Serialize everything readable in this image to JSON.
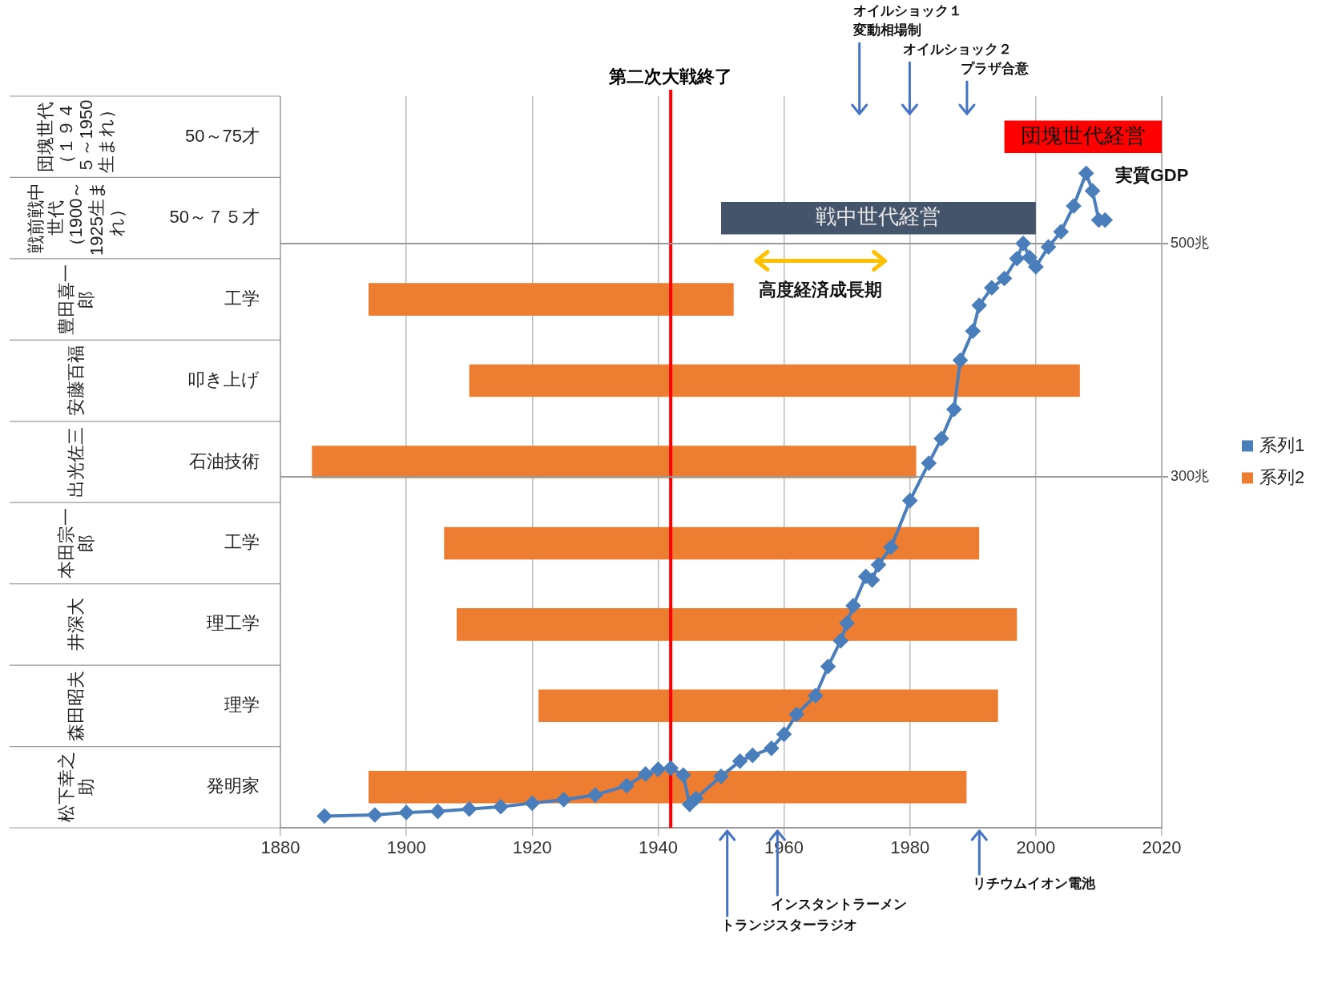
{
  "chart_data": [
    {
      "type": "bar",
      "orientation": "horizontal",
      "categories": [
        "50～75才",
        "50～７５才",
        "工学",
        "叩き上げ",
        "石油技術",
        "工学",
        "理工学",
        "理学",
        "発明家"
      ],
      "y2_categories": [
        "団塊世代（１９４５～1950生まれ）",
        "戦前戦中世代（1900～1925生まれ）",
        "豊田喜一郎",
        "安藤百福",
        "出光佐三",
        "本田宗一郎",
        "井深大",
        "森田昭夫",
        "松下幸之助"
      ],
      "xlim": [
        1880,
        2020
      ],
      "xticks": [
        1880,
        1900,
        1920,
        1940,
        1960,
        1980,
        2000,
        2020
      ],
      "grid": "x",
      "legend": "right",
      "series": [
        {
          "name": "系列2",
          "color": "#ed7d31",
          "colors": [
            "#ff0000",
            "#44546a",
            "#ed7d31",
            "#ed7d31",
            "#ed7d31",
            "#ed7d31",
            "#ed7d31",
            "#ed7d31",
            "#ed7d31"
          ],
          "base": [
            1995,
            1950,
            1894,
            1910,
            1885,
            1906,
            1908,
            1921,
            1894
          ],
          "values": [
            25,
            50,
            58,
            97,
            96,
            85,
            89,
            73,
            95
          ],
          "value_labels": [
            "団塊世代経営",
            "戦中世代経営",
            null,
            null,
            null,
            null,
            null,
            null,
            null
          ]
        }
      ],
      "ref_lines": [
        {
          "axis": "x",
          "value": 1942,
          "label": "第二次大戦終了",
          "color": "#ff0000"
        }
      ],
      "annotations": [
        "オイルショック１",
        "変動相場制",
        "オイルショック２",
        "プラザ合意",
        "高度経済成長期"
      ]
    },
    {
      "type": "line",
      "xlim": [
        1880,
        2020
      ],
      "y2lim": [
        0,
        626
      ],
      "y2ticks": [
        {
          "value": 300,
          "label": "300兆"
        },
        {
          "value": 500,
          "label": "500兆"
        }
      ],
      "tick_labels": "y",
      "grid": "y",
      "legend": "right",
      "marker": "diamond",
      "x": [
        1887,
        1895,
        1900,
        1905,
        1910,
        1915,
        1920,
        1925,
        1930,
        1935,
        1938,
        1940,
        1942,
        1944,
        1945,
        1946,
        1950,
        1953,
        1955,
        1958,
        1960,
        1962,
        1965,
        1967,
        1969,
        1970,
        1971,
        1973,
        1974,
        1975,
        1977,
        1980,
        1983,
        1985,
        1987,
        1988,
        1990,
        1991,
        1993,
        1995,
        1997,
        1998,
        1999,
        2000,
        2002,
        2004,
        2006,
        2008,
        2009,
        2010,
        2011
      ],
      "series": [
        {
          "name": "系列1",
          "color": "#4a7ebb",
          "axis": "y2",
          "values": [
            10,
            11,
            13,
            14,
            16,
            18,
            21,
            24,
            28,
            36,
            46,
            50,
            51,
            45,
            20,
            25,
            44,
            57,
            62,
            68,
            80,
            97,
            113,
            138,
            160,
            175,
            190,
            215,
            212,
            225,
            240,
            280,
            312,
            333,
            358,
            400,
            425,
            447,
            462,
            470,
            487,
            500,
            488,
            480,
            497,
            510,
            532,
            560,
            545,
            520,
            520
          ]
        }
      ],
      "annotations": [
        "トランジスターラジオ",
        "インスタントラーメン",
        "リチウムイオン電池",
        "実質GDP"
      ]
    }
  ]
}
